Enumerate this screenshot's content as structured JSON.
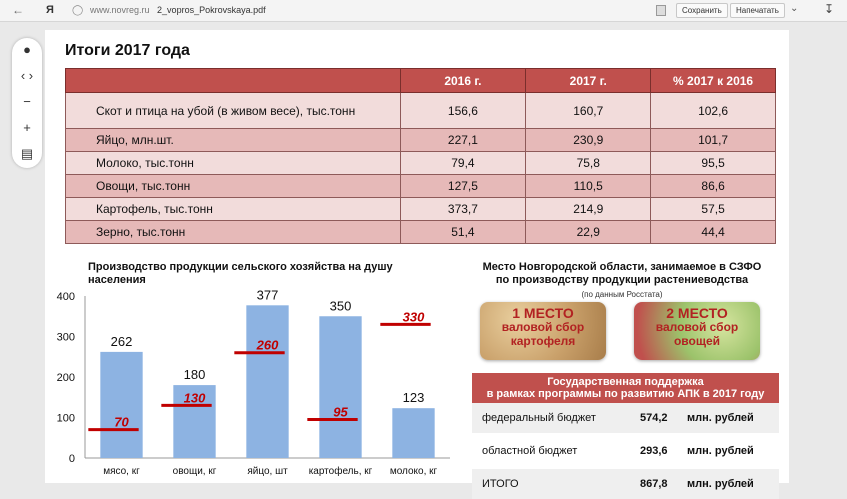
{
  "browser": {
    "logo": "Я",
    "url_domain": "www.novreg.ru",
    "url_path": "2_vopros_Pokrovskaya.pdf",
    "save_label": "Сохранить",
    "print_label": "Напечатать"
  },
  "doc": {
    "title": "Итоги 2017 года",
    "table": {
      "headers": [
        "",
        "2016 г.",
        "2017 г.",
        "% 2017 к 2016"
      ],
      "rows": [
        {
          "label": "Скот и птица на убой (в живом весе), тыс.тонн",
          "v2016": "156,6",
          "v2017": "160,7",
          "pct": "102,6"
        },
        {
          "label": "Яйцо, млн.шт.",
          "v2016": "227,1",
          "v2017": "230,9",
          "pct": "101,7"
        },
        {
          "label": "Молоко, тыс.тонн",
          "v2016": "79,4",
          "v2017": "75,8",
          "pct": "95,5"
        },
        {
          "label": "Овощи, тыс.тонн",
          "v2016": "127,5",
          "v2017": "110,5",
          "pct": "86,6"
        },
        {
          "label": "Картофель, тыс.тонн",
          "v2016": "373,7",
          "v2017": "214,9",
          "pct": "57,5"
        },
        {
          "label": "Зерно, тыс.тонн",
          "v2016": "51,4",
          "v2017": "22,9",
          "pct": "44,4"
        }
      ]
    },
    "right": {
      "title_line1": "Место Новгородской области, занимаемое в СЗФО",
      "title_line2": "по производству продукции растениеводства",
      "source": "(по данным Росстата)",
      "place1": {
        "rank": "1 МЕСТО",
        "line2": "валовой сбор",
        "line3": "картофеля"
      },
      "place2": {
        "rank": "2 МЕСТО",
        "line2": "валовой сбор",
        "line3": "овощей"
      },
      "support_title1": "Государственная поддержка",
      "support_title2": "в рамках программы по развитию АПК в 2017 году",
      "support": [
        {
          "label": "федеральный бюджет",
          "value": "574,2",
          "unit": "млн. рублей"
        },
        {
          "label": "областной бюджет",
          "value": "293,6",
          "unit": "млн. рублей"
        },
        {
          "label": "ИТОГО",
          "value": "867,8",
          "unit": "млн. рублей"
        }
      ]
    }
  },
  "chart_data": {
    "type": "bar",
    "title": "Производство продукции сельского хозяйства на душу населения",
    "categories": [
      "мясо, кг",
      "овощи, кг",
      "яйцо, шт",
      "картофель, кг",
      "молоко, кг"
    ],
    "series": [
      {
        "values": [
          262,
          180,
          377,
          350,
          123
        ],
        "color": "#8db3e2"
      },
      {
        "values": [
          70,
          130,
          260,
          95,
          330
        ],
        "color": "#c00000",
        "style": "marker-line"
      }
    ],
    "ylim": [
      0,
      400
    ],
    "yticks": [
      0,
      100,
      200,
      300,
      400
    ]
  }
}
